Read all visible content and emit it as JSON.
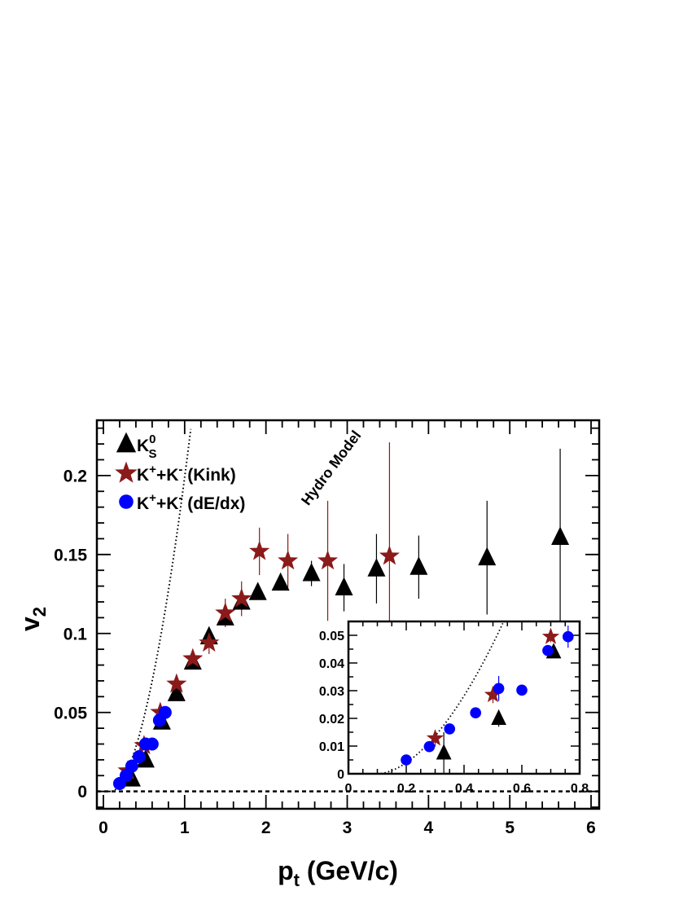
{
  "chart_data": [
    {
      "type": "scatter",
      "title": "",
      "xlabel": "p",
      "xlabel_sub": "t",
      "xlabel_units": " (GeV/c)",
      "ylabel": "v",
      "ylabel_sub": "2",
      "xlim": [
        -0.08,
        6.1
      ],
      "ylim": [
        -0.011,
        0.235
      ],
      "xticks": [
        0,
        1,
        2,
        3,
        4,
        5,
        6
      ],
      "xtick_labels": [
        "0",
        "1",
        "2",
        "3",
        "4",
        "5",
        "6"
      ],
      "yticks": [
        0,
        0.05,
        0.1,
        0.15,
        0.2
      ],
      "ytick_labels": [
        "0",
        "0.05",
        "0.1",
        "0.15",
        "0.2"
      ],
      "grid": false,
      "legend_position": "top-left",
      "zero_line": true,
      "annotation": "Hydro Model",
      "series": [
        {
          "name": "K",
          "name_sup": "0",
          "name_sub": "S",
          "marker": "triangle",
          "color": "#000000",
          "points": [
            {
              "x": 0.35,
              "y": 0.008,
              "err": 0.002
            },
            {
              "x": 0.52,
              "y": 0.02,
              "err": 0.002
            },
            {
              "x": 0.72,
              "y": 0.044,
              "err": 0.002
            },
            {
              "x": 0.9,
              "y": 0.062,
              "err": 0.002
            },
            {
              "x": 1.1,
              "y": 0.082,
              "err": 0.002
            },
            {
              "x": 1.3,
              "y": 0.098,
              "err": 0.003
            },
            {
              "x": 1.5,
              "y": 0.11,
              "err": 0.003
            },
            {
              "x": 1.7,
              "y": 0.12,
              "err": 0.003
            },
            {
              "x": 1.9,
              "y": 0.126,
              "err": 0.003
            },
            {
              "x": 2.18,
              "y": 0.132,
              "err": 0.004
            },
            {
              "x": 2.56,
              "y": 0.138,
              "err": 0.008
            },
            {
              "x": 2.96,
              "y": 0.129,
              "err": 0.015
            },
            {
              "x": 3.36,
              "y": 0.141,
              "err": 0.022
            },
            {
              "x": 3.88,
              "y": 0.142,
              "err": 0.02
            },
            {
              "x": 4.72,
              "y": 0.148,
              "err": 0.036
            },
            {
              "x": 5.62,
              "y": 0.161,
              "err": 0.056
            }
          ]
        },
        {
          "name": "K",
          "name_rest": "+K",
          "name_tail": " (Kink)",
          "name_sup": "+",
          "name_sup2": "-",
          "marker": "star",
          "color": "#8B1A1A",
          "points": [
            {
              "x": 0.3,
              "y": 0.013,
              "err": 0.003
            },
            {
              "x": 0.5,
              "y": 0.029,
              "err": 0.003
            },
            {
              "x": 0.7,
              "y": 0.05,
              "err": 0.003
            },
            {
              "x": 0.9,
              "y": 0.068,
              "err": 0.004
            },
            {
              "x": 1.1,
              "y": 0.084,
              "err": 0.005
            },
            {
              "x": 1.3,
              "y": 0.094,
              "err": 0.007
            },
            {
              "x": 1.5,
              "y": 0.113,
              "err": 0.009
            },
            {
              "x": 1.7,
              "y": 0.122,
              "err": 0.011
            },
            {
              "x": 1.92,
              "y": 0.152,
              "err": 0.015
            },
            {
              "x": 2.27,
              "y": 0.146,
              "err": 0.017
            },
            {
              "x": 2.76,
              "y": 0.146,
              "err": 0.038
            },
            {
              "x": 3.52,
              "y": 0.149,
              "err": 0.072
            }
          ]
        },
        {
          "name": "K",
          "name_rest": "+K",
          "name_tail": " (dE/dx)",
          "name_sup": "+",
          "name_sup2": "-",
          "marker": "circle",
          "color": "#0000FF",
          "points": [
            {
              "x": 0.2,
              "y": 0.005,
              "err": 0.001
            },
            {
              "x": 0.28,
              "y": 0.01,
              "err": 0.001
            },
            {
              "x": 0.35,
              "y": 0.016,
              "err": 0.001
            },
            {
              "x": 0.44,
              "y": 0.022,
              "err": 0.001
            },
            {
              "x": 0.52,
              "y": 0.03,
              "err": 0.003
            },
            {
              "x": 0.6,
              "y": 0.03,
              "err": 0.002
            },
            {
              "x": 0.69,
              "y": 0.045,
              "err": 0.002
            },
            {
              "x": 0.76,
              "y": 0.05,
              "err": 0.003
            }
          ]
        }
      ]
    },
    {
      "type": "scatter",
      "title": "inset",
      "xlabel": "",
      "ylabel": "",
      "xlim": [
        0,
        0.8
      ],
      "ylim": [
        0,
        0.055
      ],
      "xticks": [
        0,
        0.2,
        0.4,
        0.6,
        0.8
      ],
      "xtick_labels": [
        "0",
        "0.2",
        "0.4",
        "0.6",
        "0.8"
      ],
      "yticks": [
        0,
        0.01,
        0.02,
        0.03,
        0.04,
        0.05
      ],
      "ytick_labels": [
        "0",
        "0.01",
        "0.02",
        "0.03",
        "0.04",
        "0.05"
      ],
      "grid": false,
      "series": [
        {
          "marker": "triangle",
          "color": "#000000",
          "points": [
            {
              "x": 0.33,
              "y": 0.0075,
              "err": 0.0075
            },
            {
              "x": 0.52,
              "y": 0.02,
              "err": 0.003
            },
            {
              "x": 0.71,
              "y": 0.044,
              "err": 0.0015
            }
          ]
        },
        {
          "marker": "star",
          "color": "#8B1A1A",
          "points": [
            {
              "x": 0.3,
              "y": 0.0128,
              "err": 0.003
            },
            {
              "x": 0.5,
              "y": 0.0285,
              "err": 0.003
            },
            {
              "x": 0.7,
              "y": 0.0495,
              "err": 0.002
            }
          ]
        },
        {
          "marker": "circle",
          "color": "#0000FF",
          "points": [
            {
              "x": 0.2,
              "y": 0.005,
              "err": 0.0008
            },
            {
              "x": 0.28,
              "y": 0.0098,
              "err": 0.001
            },
            {
              "x": 0.35,
              "y": 0.0162,
              "err": 0.0012
            },
            {
              "x": 0.44,
              "y": 0.022,
              "err": 0.0012
            },
            {
              "x": 0.52,
              "y": 0.0308,
              "err": 0.0045
            },
            {
              "x": 0.6,
              "y": 0.0302,
              "err": 0.0018
            },
            {
              "x": 0.69,
              "y": 0.0445,
              "err": 0.0015
            },
            {
              "x": 0.76,
              "y": 0.0495,
              "err": 0.004
            }
          ]
        }
      ]
    }
  ]
}
